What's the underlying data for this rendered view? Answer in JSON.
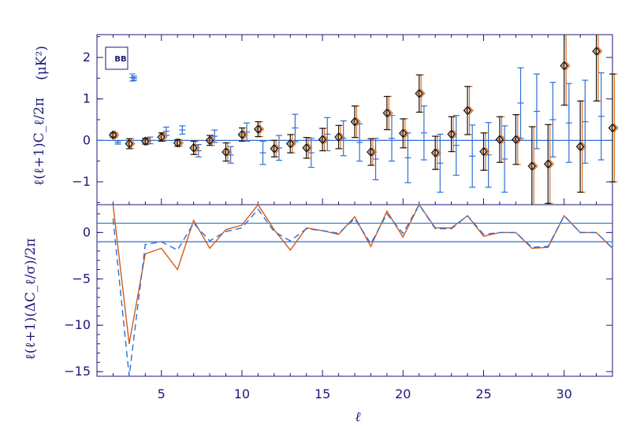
{
  "chart_data": [
    {
      "type": "scatter",
      "panel": "top",
      "xlabel": "",
      "ylabel": "ℓ(ℓ+1)C_ℓ/2π",
      "unit_label": "(μK²)",
      "ylim": [
        -1.55,
        2.55
      ],
      "xlim": [
        1,
        33
      ],
      "yticks": [
        "-1",
        "0",
        "1",
        "2"
      ],
      "legend": {
        "label": "BB",
        "placement": "top-left"
      },
      "colors": {
        "axes": "#1a1a78",
        "blue": "#2e6fd6",
        "orange": "#e07020",
        "black": "#151515"
      },
      "diamond_series": [
        {
          "x": [
            2,
            3,
            4,
            5,
            6,
            7,
            8,
            9,
            10,
            11,
            12,
            13,
            14,
            15,
            16,
            17,
            18,
            19,
            20,
            21,
            22,
            23,
            24,
            25,
            26,
            27,
            28,
            29,
            30,
            31,
            32,
            33
          ],
          "y": [
            0.13,
            -0.08,
            -0.02,
            0.08,
            -0.06,
            -0.18,
            0.0,
            -0.28,
            0.14,
            0.27,
            -0.2,
            -0.08,
            -0.18,
            0.02,
            0.08,
            0.45,
            -0.28,
            0.66,
            0.17,
            1.13,
            -0.3,
            0.15,
            0.72,
            -0.27,
            0.02,
            0.02,
            -0.62,
            -0.57,
            1.8,
            -0.15,
            2.15,
            0.3
          ],
          "err": [
            0.05,
            0.12,
            0.07,
            0.1,
            0.08,
            0.16,
            0.12,
            0.22,
            0.16,
            0.18,
            0.2,
            0.22,
            0.25,
            0.27,
            0.28,
            0.38,
            0.32,
            0.4,
            0.35,
            0.45,
            0.4,
            0.42,
            0.58,
            0.45,
            0.55,
            0.6,
            0.95,
            0.95,
            0.95,
            1.1,
            1.2,
            1.3
          ]
        }
      ],
      "blue_series": [
        {
          "x": [
            2.3,
            3.3,
            4.3,
            5.3,
            6.3,
            7.3,
            8.3,
            9.3,
            10.3,
            11.3,
            12.3,
            13.3,
            14.3,
            15.3,
            16.3,
            17.3,
            18.3,
            19.3,
            20.3,
            21.3,
            22.3,
            23.3,
            24.3,
            25.3,
            26.3,
            27.3,
            28.3,
            29.3,
            30.3,
            31.3,
            32.3
          ],
          "y": [
            -0.05,
            1.5,
            0.0,
            0.22,
            0.25,
            -0.25,
            0.1,
            -0.35,
            0.2,
            -0.3,
            -0.18,
            0.3,
            -0.3,
            0.15,
            0.05,
            -0.05,
            -0.45,
            0.05,
            -0.42,
            0.18,
            -0.55,
            -0.12,
            -0.38,
            -0.35,
            -0.45,
            0.9,
            0.7,
            0.5,
            0.42,
            0.45,
            0.58
          ],
          "err": [
            0.04,
            0.05,
            0.08,
            0.1,
            0.1,
            0.15,
            0.15,
            0.2,
            0.22,
            0.28,
            0.3,
            0.33,
            0.35,
            0.4,
            0.42,
            0.45,
            0.5,
            0.55,
            0.6,
            0.65,
            0.7,
            0.72,
            0.75,
            0.78,
            0.8,
            0.85,
            0.9,
            0.9,
            0.95,
            1.0,
            1.05
          ]
        }
      ]
    },
    {
      "type": "line",
      "panel": "bottom",
      "xlabel": "ℓ",
      "ylabel": "ℓ(ℓ+1)(ΔC_ℓ/σ)/2π",
      "xlim": [
        1,
        33
      ],
      "ylim": [
        -15.5,
        3.0
      ],
      "xticks": [
        "5",
        "10",
        "15",
        "20",
        "25",
        "30"
      ],
      "yticks": [
        "-15",
        "-10",
        "-5",
        "0"
      ],
      "hlines": [
        1,
        -1
      ],
      "series": [
        {
          "style": "solid",
          "color": "#d55a1a",
          "x": [
            2,
            3,
            4,
            5,
            6,
            7,
            8,
            9,
            10,
            11,
            12,
            13,
            14,
            15,
            16,
            17,
            18,
            19,
            20,
            21,
            22,
            23,
            24,
            25,
            26,
            27,
            28,
            29,
            30,
            31,
            32,
            33
          ],
          "y": [
            4.0,
            -12.0,
            -2.3,
            -1.7,
            -4.0,
            1.3,
            -1.7,
            0.3,
            0.8,
            3.0,
            0.3,
            -1.9,
            0.5,
            0.2,
            -0.2,
            1.7,
            -1.5,
            2.3,
            -0.5,
            3.0,
            0.5,
            0.5,
            1.8,
            -0.4,
            0.0,
            0.0,
            -1.7,
            -1.6,
            1.8,
            0.0,
            0.0,
            -1.7
          ]
        },
        {
          "style": "dashed",
          "color": "#2e6fd6",
          "x": [
            2,
            3,
            4,
            5,
            6,
            7,
            8,
            9,
            10,
            11,
            12,
            13,
            14,
            15,
            16,
            17,
            18,
            19,
            20,
            21,
            22,
            23,
            24,
            25,
            26,
            27,
            28,
            29,
            30,
            31,
            32,
            33
          ],
          "y": [
            1.5,
            -15.5,
            -1.3,
            -1.0,
            -1.9,
            1.0,
            -0.9,
            0.1,
            0.5,
            2.5,
            0.1,
            -0.9,
            0.4,
            0.2,
            -0.1,
            1.5,
            -1.2,
            2.0,
            -0.1,
            3.0,
            0.4,
            0.4,
            1.8,
            -0.2,
            0.0,
            0.0,
            -1.6,
            -1.5,
            1.8,
            0.0,
            0.0,
            -1.7
          ]
        }
      ]
    }
  ]
}
